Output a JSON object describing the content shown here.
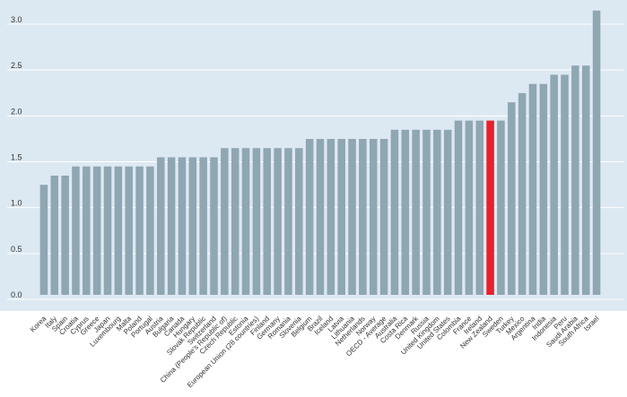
{
  "chart_data": {
    "type": "bar",
    "title": "",
    "xlabel": "",
    "ylabel": "",
    "ylim": [
      0,
      3.3
    ],
    "yticks": [
      "0.0",
      "0.5",
      "1.0",
      "1.5",
      "2.0",
      "2.5",
      "3.0"
    ],
    "ytick_values": [
      0,
      0.5,
      1.0,
      1.5,
      2.0,
      2.5,
      3.0
    ],
    "grid": true,
    "categories": [
      "Korea",
      "Italy",
      "Spain",
      "Croatia",
      "Cyprus",
      "Greece",
      "Japan",
      "Luxembourg",
      "Malta",
      "Poland",
      "Portugal",
      "Austria",
      "Bulgaria",
      "Canada",
      "Hungary",
      "Slovak Republic",
      "Switzerland",
      "China (People's Republic of)",
      "Czech Republic",
      "Estonia",
      "European Union (28 countries)",
      "Finland",
      "Germany",
      "Romania",
      "Slovenia",
      "Belgium",
      "Brazil",
      "Iceland",
      "Latvia",
      "Lithuania",
      "Netherlands",
      "Norway",
      "OECD - Average",
      "Australia",
      "Costa Rica",
      "Denmark",
      "Russia",
      "United Kingdom",
      "United States",
      "Colombia",
      "France",
      "Ireland",
      "New Zealand",
      "Sweden",
      "Turkey",
      "Mexico",
      "Argentina",
      "India",
      "Indonesia",
      "Peru",
      "Saudi Arabia",
      "South Africa",
      "Israel"
    ],
    "values": [
      1.2,
      1.3,
      1.3,
      1.4,
      1.4,
      1.4,
      1.4,
      1.4,
      1.4,
      1.4,
      1.4,
      1.5,
      1.5,
      1.5,
      1.5,
      1.5,
      1.5,
      1.6,
      1.6,
      1.6,
      1.6,
      1.6,
      1.6,
      1.6,
      1.6,
      1.7,
      1.7,
      1.7,
      1.7,
      1.7,
      1.7,
      1.7,
      1.7,
      1.8,
      1.8,
      1.8,
      1.8,
      1.8,
      1.8,
      1.9,
      1.9,
      1.9,
      1.9,
      1.9,
      2.1,
      2.2,
      2.3,
      2.3,
      2.4,
      2.4,
      2.5,
      2.5,
      3.1
    ],
    "highlight": "New Zealand",
    "colors": {
      "bar": "#8fa6b3",
      "highlight": "#e8202a",
      "plot_background": "#dde9f2",
      "gridline": "#ffffff",
      "highlight_label": "#e8202a"
    }
  }
}
